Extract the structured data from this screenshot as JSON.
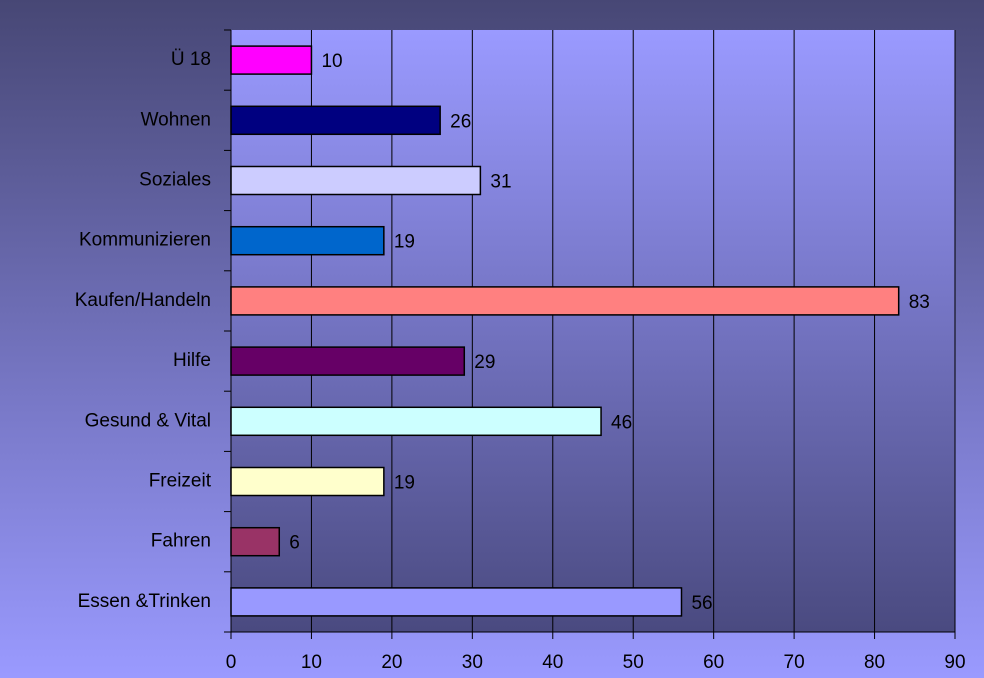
{
  "chart_data": {
    "type": "hbar",
    "categories": [
      "Ü 18",
      "Wohnen",
      "Soziales",
      "Kommunizieren",
      "Kaufen/Handeln",
      "Hilfe",
      "Gesund & Vital",
      "Freizeit",
      "Fahren",
      "Essen &Trinken"
    ],
    "values": [
      10,
      26,
      31,
      19,
      83,
      29,
      46,
      19,
      6,
      56
    ],
    "colors": [
      "#ff00ff",
      "#000080",
      "#ccccff",
      "#0066cc",
      "#ff8080",
      "#660066",
      "#ccffff",
      "#ffffcc",
      "#993366",
      "#9999ff"
    ],
    "xlim": [
      0,
      90
    ],
    "xticks": [
      0,
      10,
      20,
      30,
      40,
      50,
      60,
      70,
      80,
      90
    ],
    "grid": true
  }
}
